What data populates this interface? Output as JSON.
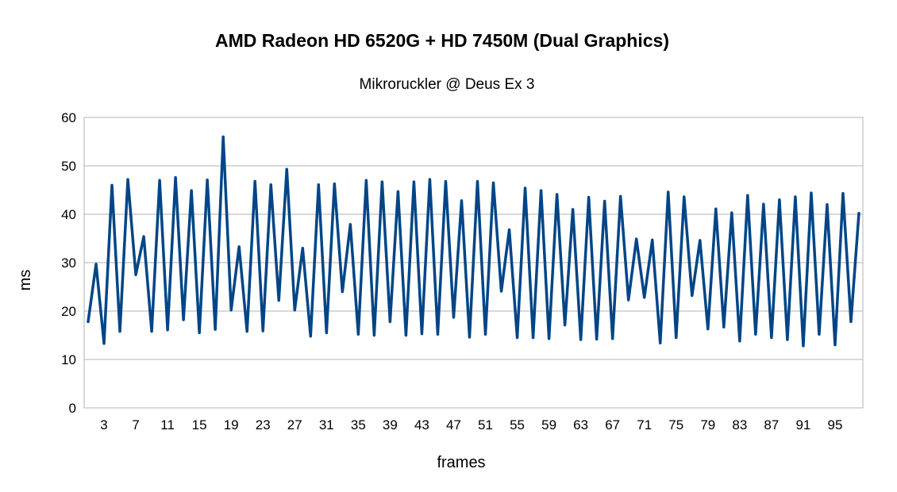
{
  "chart_data": {
    "type": "line",
    "title": "AMD Radeon HD 6520G + HD 7450M (Dual Graphics)",
    "subtitle": "Mikroruckler @ Deus Ex 3",
    "xlabel": "frames",
    "ylabel": "ms",
    "ylim": [
      0,
      60
    ],
    "y_ticks": [
      0,
      10,
      20,
      30,
      40,
      50,
      60
    ],
    "x_tick_labels": [
      "3",
      "7",
      "11",
      "15",
      "19",
      "23",
      "27",
      "31",
      "35",
      "39",
      "43",
      "47",
      "51",
      "55",
      "59",
      "63",
      "67",
      "71",
      "75",
      "79",
      "83",
      "87",
      "91",
      "95"
    ],
    "x_tick_values": [
      3,
      7,
      11,
      15,
      19,
      23,
      27,
      31,
      35,
      39,
      43,
      47,
      51,
      55,
      59,
      63,
      67,
      71,
      75,
      79,
      83,
      87,
      91,
      95
    ],
    "grid": true,
    "line_color": "#004586",
    "x": [
      1,
      2,
      3,
      4,
      5,
      6,
      7,
      8,
      9,
      10,
      11,
      12,
      13,
      14,
      15,
      16,
      17,
      18,
      19,
      20,
      21,
      22,
      23,
      24,
      25,
      26,
      27,
      28,
      29,
      30,
      31,
      32,
      33,
      34,
      35,
      36,
      37,
      38,
      39,
      40,
      41,
      42,
      43,
      44,
      45,
      46,
      47,
      48,
      49,
      50,
      51,
      52,
      53,
      54,
      55,
      56,
      57,
      58,
      59,
      60,
      61,
      62,
      63,
      64,
      65,
      66,
      67,
      68,
      69,
      70,
      71,
      72,
      73,
      74,
      75,
      76,
      77,
      78,
      79,
      80,
      81,
      82,
      83,
      84,
      85,
      86,
      87,
      88,
      89,
      90,
      91,
      92,
      93,
      94,
      95,
      96,
      97,
      98
    ],
    "series": [
      {
        "values": [
          17.8,
          29.7,
          13.3,
          46.0,
          15.8,
          47.2,
          27.5,
          35.4,
          15.8,
          47.0,
          16.1,
          47.6,
          18.2,
          44.9,
          15.5,
          47.1,
          16.2,
          56.0,
          20.2,
          33.3,
          15.8,
          46.8,
          15.9,
          46.1,
          22.2,
          49.3,
          20.2,
          33.0,
          14.8,
          46.1,
          15.5,
          46.3,
          24.0,
          37.9,
          15.2,
          47.0,
          15.0,
          46.7,
          17.8,
          44.7,
          15.0,
          46.7,
          15.3,
          47.2,
          15.2,
          46.8,
          18.7,
          42.8,
          14.6,
          46.8,
          15.2,
          46.5,
          24.1,
          36.8,
          14.5,
          45.4,
          14.5,
          44.9,
          14.3,
          44.1,
          17.1,
          41.0,
          14.1,
          43.5,
          14.2,
          42.7,
          14.3,
          43.7,
          22.3,
          34.9,
          22.8,
          34.7,
          13.4,
          44.6,
          14.5,
          43.6,
          23.2,
          34.6,
          16.3,
          41.1,
          16.7,
          40.3,
          13.8,
          43.9,
          15.2,
          42.1,
          14.5,
          43.0,
          14.1,
          43.6,
          12.8,
          44.4,
          15.2,
          42.0,
          13.0,
          44.3,
          17.8,
          40.2
        ]
      }
    ]
  }
}
